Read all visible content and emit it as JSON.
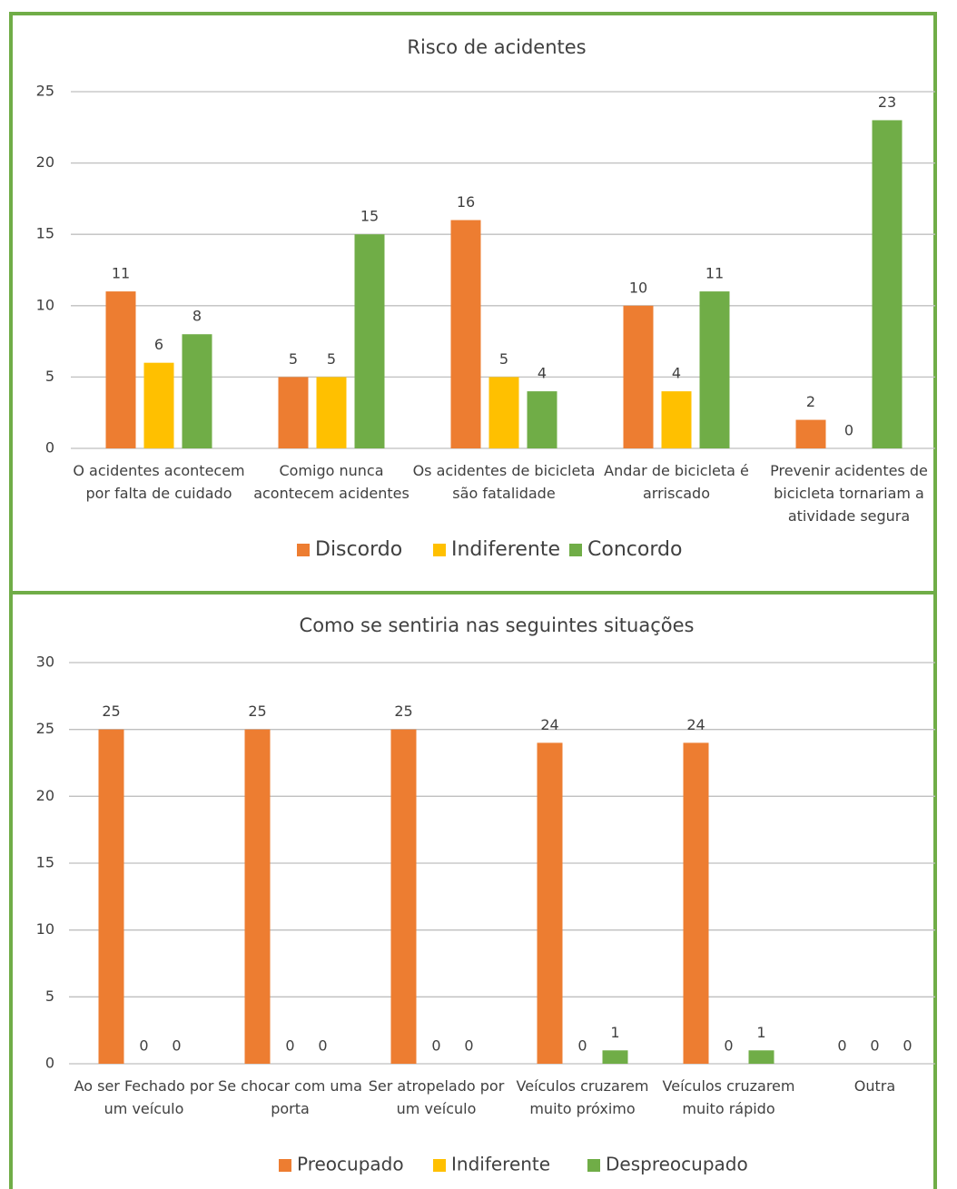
{
  "chart_data": [
    {
      "type": "bar",
      "title": "Risco de acidentes",
      "categories": [
        "O acidentes acontecem por falta de cuidado",
        "Comigo nunca acontecem acidentes",
        "Os acidentes de bicicleta são fatalidade",
        "Andar de bicicleta é arriscado",
        "Prevenir acidentes de bicicleta tornariam a atividade segura"
      ],
      "series": [
        {
          "name": "Discordo",
          "color": "#ed7d31",
          "values": [
            11,
            5,
            16,
            10,
            2
          ]
        },
        {
          "name": "Indiferente",
          "color": "#ffc000",
          "values": [
            6,
            5,
            5,
            4,
            0
          ]
        },
        {
          "name": "Concordo",
          "color": "#70ad47",
          "values": [
            8,
            15,
            4,
            11,
            23
          ]
        }
      ],
      "ylim": [
        0,
        25
      ],
      "yticks": [
        0,
        5,
        10,
        15,
        20,
        25
      ],
      "grid": true,
      "legend": "bottom"
    },
    {
      "type": "bar",
      "title": "Como se sentiria nas seguintes situações",
      "categories": [
        "Ao ser Fechado por um veículo",
        "Se chocar com uma porta",
        "Ser atropelado por um veículo",
        "Veículos cruzarem muito próximo",
        "Veículos cruzarem muito rápido",
        "Outra"
      ],
      "series": [
        {
          "name": "Preocupado",
          "color": "#ed7d31",
          "values": [
            25,
            25,
            25,
            24,
            24,
            0
          ]
        },
        {
          "name": "Indiferente",
          "color": "#ffc000",
          "values": [
            0,
            0,
            0,
            0,
            0,
            0
          ]
        },
        {
          "name": "Despreocupado",
          "color": "#70ad47",
          "values": [
            0,
            0,
            0,
            1,
            1,
            0
          ]
        }
      ],
      "ylim": [
        0,
        30
      ],
      "yticks": [
        0,
        5,
        10,
        15,
        20,
        25,
        30
      ],
      "grid": true,
      "legend": "bottom"
    }
  ]
}
